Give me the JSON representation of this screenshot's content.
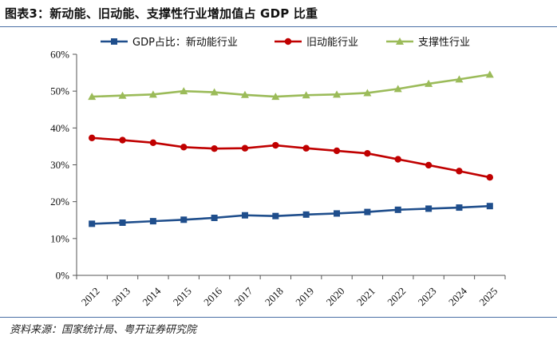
{
  "figure": {
    "title": "图表3：新动能、旧动能、支撑性行业增加值占 GDP 比重",
    "source": "资料来源：国家统计局、粤开证券研究院"
  },
  "chart_data": {
    "type": "line",
    "categories": [
      "2012",
      "2013",
      "2014",
      "2015",
      "2016",
      "2017",
      "2018",
      "2019",
      "2020",
      "2021",
      "2022",
      "2023",
      "2024",
      "2025"
    ],
    "ylim": [
      0,
      60
    ],
    "yticks": [
      "0%",
      "10%",
      "20%",
      "30%",
      "40%",
      "50%",
      "60%"
    ],
    "grid": false,
    "legend_position": "top",
    "series": [
      {
        "name": "GDP占比：新动能行业",
        "color": "#1f4e8c",
        "marker": "square",
        "values": [
          14.0,
          14.3,
          14.7,
          15.1,
          15.6,
          16.3,
          16.1,
          16.5,
          16.8,
          17.2,
          17.8,
          18.1,
          18.4,
          18.8
        ]
      },
      {
        "name": "旧动能行业",
        "color": "#c00000",
        "marker": "circle",
        "values": [
          37.3,
          36.7,
          36.0,
          34.8,
          34.4,
          34.5,
          35.3,
          34.5,
          33.8,
          33.1,
          31.5,
          29.9,
          28.3,
          26.6
        ]
      },
      {
        "name": "支撑性行业",
        "color": "#9bbb59",
        "marker": "triangle",
        "values": [
          48.5,
          48.8,
          49.1,
          50.0,
          49.7,
          49.0,
          48.5,
          48.9,
          49.1,
          49.5,
          50.6,
          52.0,
          53.2,
          54.5
        ]
      }
    ]
  }
}
